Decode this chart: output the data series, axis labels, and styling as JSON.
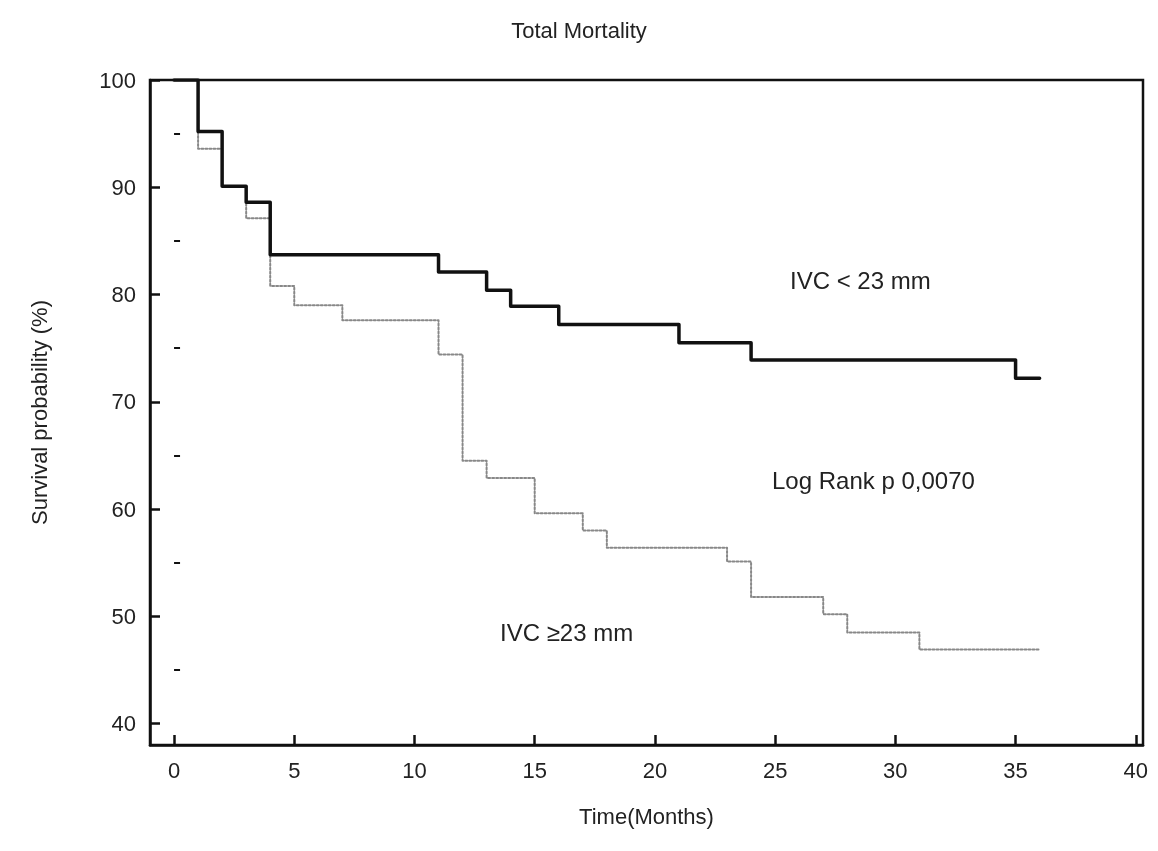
{
  "chart_data": {
    "type": "step",
    "title": "Total Mortality",
    "xlabel": "Time(Months)",
    "ylabel": "Survival probability (%)",
    "xlim": [
      -1,
      40.3
    ],
    "xticks": [
      0,
      5,
      10,
      15,
      20,
      25,
      30,
      35,
      40
    ],
    "ylim": [
      38,
      100
    ],
    "yticks": [
      40,
      50,
      60,
      70,
      80,
      90,
      100
    ],
    "grid": false,
    "legend": false,
    "series": [
      {
        "name": "IVC < 23 mm",
        "color": "#111111",
        "line_style": "solid",
        "x": [
          0,
          1,
          2,
          3,
          4,
          11,
          13,
          14,
          16,
          21,
          24,
          35,
          36
        ],
        "values": [
          100,
          95.2,
          90.1,
          88.6,
          83.7,
          82.1,
          80.4,
          78.9,
          77.2,
          75.5,
          73.9,
          72.2,
          72.2
        ]
      },
      {
        "name": "IVC ≥23 mm",
        "color": "#888888",
        "line_style": "dotted",
        "x": [
          0,
          1,
          2,
          3,
          4,
          5,
          7,
          11,
          12,
          13,
          15,
          17,
          18,
          23,
          24,
          27,
          28,
          31,
          36
        ],
        "values": [
          100,
          93.6,
          90.1,
          87.1,
          80.8,
          79,
          77.6,
          74.4,
          64.5,
          62.9,
          59.6,
          58,
          56.4,
          55.1,
          51.8,
          50.2,
          48.5,
          46.9,
          46.9
        ]
      }
    ],
    "annotations": [
      "Log Rank p 0,0070"
    ]
  }
}
